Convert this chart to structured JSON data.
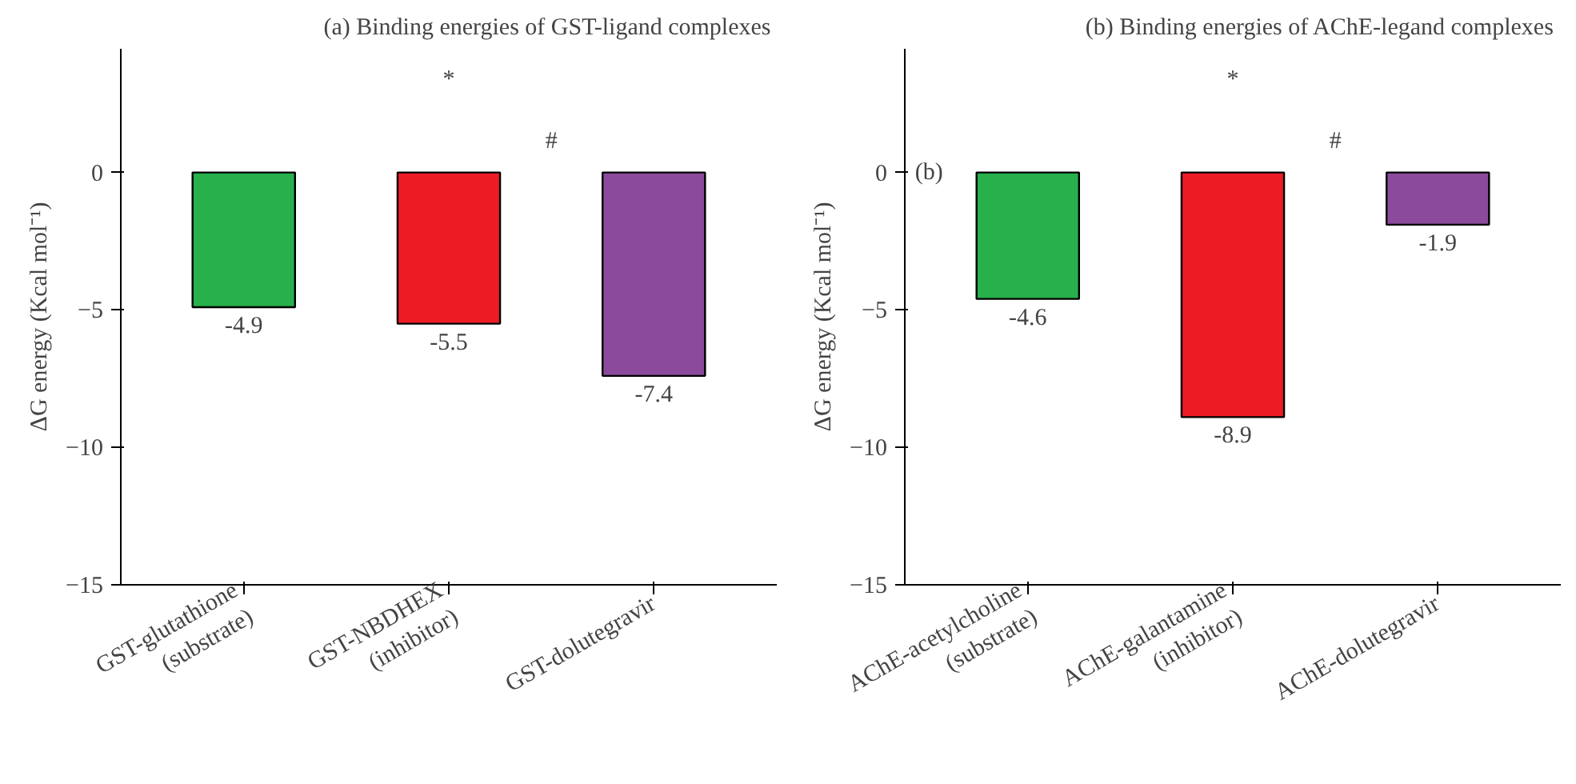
{
  "chart_data": [
    {
      "type": "bar",
      "title": "(a)  Binding energies of GST-ligand complexes",
      "ylabel": "ΔG energy (Kcal mol⁻¹)",
      "categories": [
        "GST-glutathione\n(substrate)",
        "GST-NBDHEX\n(inhibitor)",
        "GST-dolutegravir"
      ],
      "values": [
        -4.9,
        -5.5,
        -7.4
      ],
      "colors": [
        "#27b04b",
        "#ed1c24",
        "#8b4a9c"
      ],
      "data_labels": true,
      "ylim": [
        -15,
        4.5
      ],
      "yticks": [
        -15,
        -10,
        -5,
        0
      ],
      "grid": false,
      "annotations": [
        "*",
        "#"
      ]
    },
    {
      "type": "bar",
      "title": "(b)  Binding energies of AChE-legand complexes",
      "ylabel": "ΔG energy (Kcal mol⁻¹)",
      "categories": [
        "AChE-acetylcholine\n(substrate)",
        "AChE-galantamine\n(inhibitor)",
        "AChE-dolutegravir"
      ],
      "values": [
        -4.6,
        -8.9,
        -1.9
      ],
      "colors": [
        "#27b04b",
        "#ed1c24",
        "#8b4a9c"
      ],
      "data_labels": true,
      "ylim": [
        -15,
        4.5
      ],
      "yticks": [
        -15,
        -10,
        -5,
        0
      ],
      "grid": false,
      "annotations": [
        "*",
        "#",
        "(b)"
      ]
    }
  ]
}
